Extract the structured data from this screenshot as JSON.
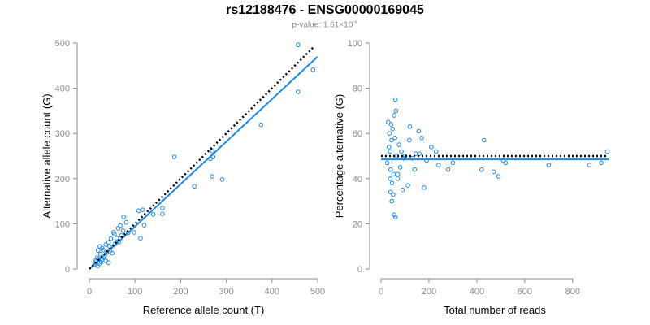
{
  "figure": {
    "title": "rs12188476 - ENSG00000169045",
    "pvalue_label": "p-value: 1.61×10",
    "pvalue_exponent": "-4"
  },
  "colors": {
    "points": "#1e88e5",
    "fit": "#1e88e5",
    "expected": "#000000",
    "axis": "#8a8a8a"
  },
  "chart_data": [
    {
      "type": "scatter",
      "name": "left-panel",
      "xlabel": "Reference allele count (T)",
      "ylabel": "Alternative allele count (G)",
      "xlim": [
        0,
        500
      ],
      "ylim": [
        0,
        500
      ],
      "xticks": [
        0,
        100,
        200,
        300,
        400,
        500
      ],
      "yticks": [
        0,
        100,
        200,
        300,
        400,
        500
      ],
      "fit_line": {
        "x": [
          0,
          500
        ],
        "y": [
          0,
          470
        ]
      },
      "expected_line": {
        "x": [
          0,
          490
        ],
        "y": [
          0,
          490
        ]
      },
      "points": [
        [
          457,
          496
        ],
        [
          490,
          441
        ],
        [
          457,
          392
        ],
        [
          376,
          319
        ],
        [
          269,
          261
        ],
        [
          265,
          244
        ],
        [
          271,
          248
        ],
        [
          291,
          198
        ],
        [
          269,
          205
        ],
        [
          186,
          248
        ],
        [
          230,
          183
        ],
        [
          160,
          135
        ],
        [
          160,
          122
        ],
        [
          140,
          121
        ],
        [
          117,
          131
        ],
        [
          108,
          129
        ],
        [
          120,
          97
        ],
        [
          112,
          68
        ],
        [
          98,
          81
        ],
        [
          75,
          115
        ],
        [
          81,
          103
        ],
        [
          68,
          96
        ],
        [
          63,
          90
        ],
        [
          74,
          85
        ],
        [
          53,
          81
        ],
        [
          55,
          77
        ],
        [
          47,
          67
        ],
        [
          60,
          68
        ],
        [
          70,
          74
        ],
        [
          42,
          59
        ],
        [
          57,
          56
        ],
        [
          36,
          54
        ],
        [
          44,
          50
        ],
        [
          28,
          46
        ],
        [
          23,
          50
        ],
        [
          19,
          41
        ],
        [
          30,
          42
        ],
        [
          38,
          36
        ],
        [
          33,
          28
        ],
        [
          24,
          33
        ],
        [
          17,
          25
        ],
        [
          28,
          20
        ],
        [
          14,
          19
        ],
        [
          36,
          18
        ],
        [
          42,
          14
        ],
        [
          22,
          12
        ],
        [
          12,
          10
        ],
        [
          18,
          7
        ],
        [
          15,
          16
        ],
        [
          20,
          22
        ],
        [
          26,
          15
        ],
        [
          31,
          25
        ],
        [
          45,
          40
        ],
        [
          50,
          35
        ],
        [
          65,
          60
        ],
        [
          85,
          80
        ]
      ]
    },
    {
      "type": "scatter",
      "name": "right-panel",
      "xlabel": "Total number of reads",
      "ylabel": "Percentage alternative (G)",
      "xlim": [
        0,
        950
      ],
      "ylim": [
        0,
        100
      ],
      "xticks": [
        0,
        200,
        400,
        600,
        800
      ],
      "yticks": [
        0,
        20,
        40,
        60,
        80,
        100
      ],
      "fit_line": {
        "x": [
          0,
          950
        ],
        "y": [
          48.5,
          48.5
        ]
      },
      "expected_line": {
        "x": [
          0,
          950
        ],
        "y": [
          50,
          50
        ]
      },
      "points": [
        [
          60,
          75
        ],
        [
          62,
          70
        ],
        [
          55,
          68
        ],
        [
          30,
          65
        ],
        [
          48,
          62
        ],
        [
          44,
          57
        ],
        [
          118,
          57
        ],
        [
          120,
          63
        ],
        [
          157,
          61
        ],
        [
          170,
          58
        ],
        [
          430,
          57
        ],
        [
          38,
          52
        ],
        [
          85,
          52
        ],
        [
          95,
          49
        ],
        [
          145,
          51
        ],
        [
          210,
          54
        ],
        [
          230,
          52
        ],
        [
          26,
          47
        ],
        [
          40,
          44
        ],
        [
          52,
          42
        ],
        [
          70,
          40
        ],
        [
          112,
          37
        ],
        [
          180,
          36
        ],
        [
          240,
          46
        ],
        [
          280,
          44
        ],
        [
          300,
          47
        ],
        [
          420,
          44
        ],
        [
          470,
          43
        ],
        [
          490,
          41
        ],
        [
          510,
          48
        ],
        [
          520,
          47
        ],
        [
          700,
          46
        ],
        [
          870,
          46
        ],
        [
          920,
          47
        ],
        [
          945,
          52
        ],
        [
          40,
          34
        ],
        [
          45,
          30
        ],
        [
          55,
          24
        ],
        [
          60,
          23
        ],
        [
          38,
          40
        ],
        [
          46,
          38
        ],
        [
          33,
          54
        ],
        [
          65,
          50
        ],
        [
          75,
          55
        ],
        [
          80,
          45
        ],
        [
          100,
          50
        ],
        [
          130,
          49
        ],
        [
          140,
          44
        ],
        [
          160,
          51
        ],
        [
          190,
          48
        ],
        [
          35,
          60
        ],
        [
          42,
          64
        ],
        [
          58,
          58
        ],
        [
          70,
          42
        ],
        [
          90,
          35
        ],
        [
          50,
          33
        ]
      ]
    }
  ]
}
